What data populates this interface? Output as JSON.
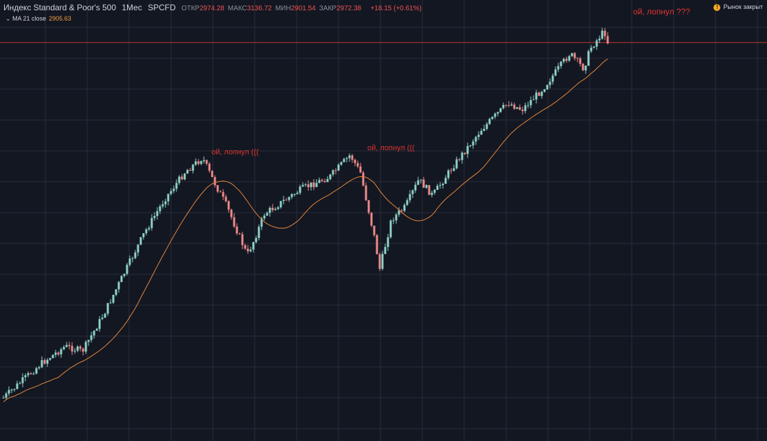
{
  "header": {
    "title": "Индекс Standard & Poor's 500",
    "interval": "1Мес",
    "symbol": "SPCFD",
    "ohlc": [
      {
        "label": "ОТКР",
        "value": "2974.28"
      },
      {
        "label": "МАКС",
        "value": "3136.72"
      },
      {
        "label": "МИН",
        "value": "2901.54"
      },
      {
        "label": "ЗАКР",
        "value": "2972.38"
      }
    ],
    "change": "+18.15 (+0.61%)"
  },
  "indicator": {
    "name": "MA 21 close",
    "value": "2905.63"
  },
  "market_status": "Рынок закрыт",
  "annotations": [
    "ой, лопнул (((",
    "ой, лопнул (((",
    "ой, лопнул ???"
  ]
}
